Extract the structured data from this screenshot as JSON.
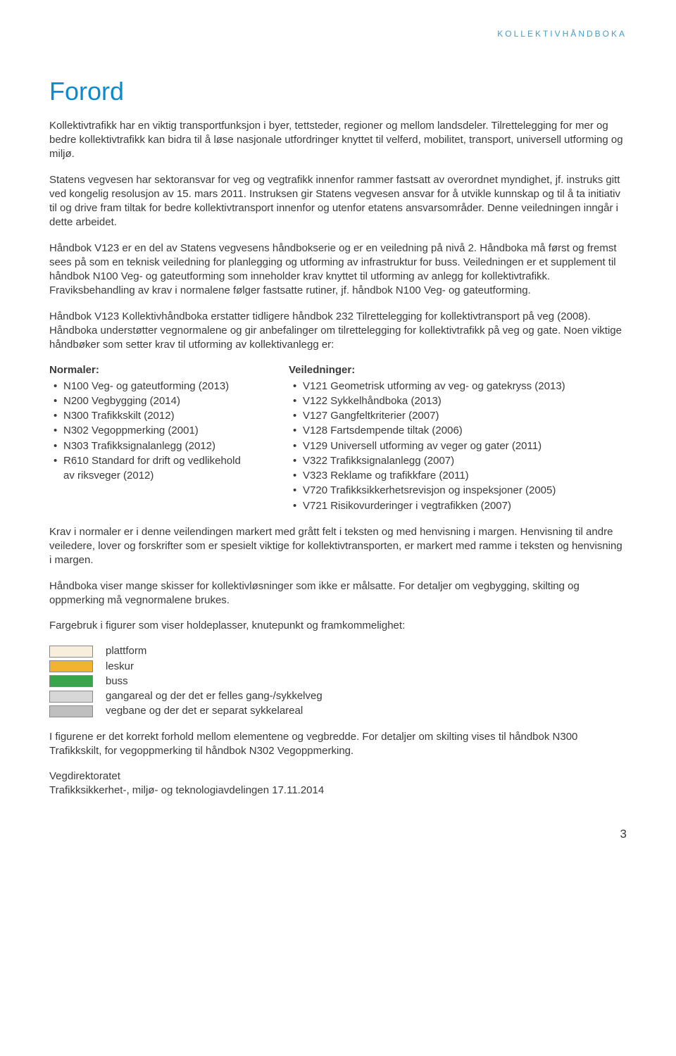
{
  "header_label": "KOLLEKTIVHÅNDBOKA",
  "title": "Forord",
  "paragraphs": {
    "p1": "Kollektivtrafikk har en viktig transportfunksjon i byer, tettsteder, regioner og mellom landsdeler. Tilrettelegging for mer og bedre kollektivtrafikk kan bidra til å løse nasjonale utfordringer knyttet til velferd, mobilitet, transport, universell utforming og miljø.",
    "p2": "Statens vegvesen har sektoransvar for veg og vegtrafikk innenfor rammer fastsatt av overordnet myndighet, jf. instruks gitt ved kongelig resolusjon av 15. mars 2011. Instruksen gir Statens vegvesen ansvar for å utvikle kunnskap og til å ta initiativ til og drive fram tiltak for bedre kollektivtransport innenfor og utenfor etatens ansvarsområder. Denne veiledningen inngår i dette arbeidet.",
    "p3": "Håndbok V123 er en del av Statens vegvesens håndbokserie og er en veiledning på nivå 2. Håndboka må først og fremst sees på som en teknisk veiledning for planlegging og utforming av infrastruktur for buss. Veiledningen er et supplement til håndbok N100 Veg- og gateutforming som inneholder krav knyttet til utforming av anlegg for kollektivtrafikk. Fraviksbehandling av krav i normalene følger fastsatte rutiner, jf. håndbok N100 Veg- og gateutforming.",
    "p4": "Håndbok V123 Kollektivhåndboka erstatter tidligere håndbok 232 Tilrettelegging for kollektivtransport på veg (2008). Håndboka understøtter vegnormalene og gir anbefalinger om tilrettelegging for kollektivtrafikk på veg og gate. Noen viktige håndbøker som setter krav til utforming av kollektivanlegg er:",
    "p5": "Krav i normaler er i denne veilendingen markert med grått felt i teksten og med henvisning i margen. Henvisning til andre veiledere, lover og forskrifter som er spesielt viktige for kollektivtransporten, er markert med ramme i teksten og henvisning i margen.",
    "p6": "Håndboka viser mange skisser for kollektivløsninger som ikke er målsatte. For detaljer om vegbygging, skilting og oppmerking må vegnormalene brukes.",
    "p7": "Fargebruk i figurer som viser holdeplasser, knutepunkt og framkommelighet:",
    "p8": "I figurene er det korrekt forhold mellom elementene og vegbredde. For detaljer om skilting vises til håndbok N300 Trafikkskilt, for vegoppmerking til håndbok N302 Vegoppmerking.",
    "p9a": "Vegdirektoratet",
    "p9b": "Trafikksikkerhet-, miljø- og teknologiavdelingen 17.11.2014"
  },
  "normaler": {
    "heading": "Normaler:",
    "items": [
      "N100 Veg- og gateutforming (2013)",
      "N200 Vegbygging (2014)",
      "N300 Trafikkskilt (2012)",
      "N302 Vegoppmerking (2001)",
      "N303 Trafikksignalanlegg (2012)",
      "R610 Standard for drift og vedlikehold",
      "av riksveger (2012)"
    ]
  },
  "veiledninger": {
    "heading": "Veiledninger:",
    "items": [
      "V121 Geometrisk utforming av veg- og gatekryss (2013)",
      "V122 Sykkelhåndboka (2013)",
      "V127 Gangfeltkriterier (2007)",
      "V128 Fartsdempende tiltak (2006)",
      "V129 Universell utforming av veger og gater (2011)",
      "V322 Trafikksignalanlegg (2007)",
      "V323 Reklame og trafikkfare (2011)",
      "V720 Trafikksikkerhetsrevisjon og inspeksjoner (2005)",
      "V721 Risikovurderinger i vegtrafikken (2007)"
    ]
  },
  "legend": [
    {
      "color": "#f7efdb",
      "label": "plattform"
    },
    {
      "color": "#f2b430",
      "label": "leskur"
    },
    {
      "color": "#37a64a",
      "label": "buss"
    },
    {
      "color": "#d7d7d7",
      "label": "gangareal og der det er felles gang-/sykkelveg"
    },
    {
      "color": "#bfbfbf",
      "label": "vegbane og der det er separat sykkelareal"
    }
  ],
  "page_number": "3"
}
